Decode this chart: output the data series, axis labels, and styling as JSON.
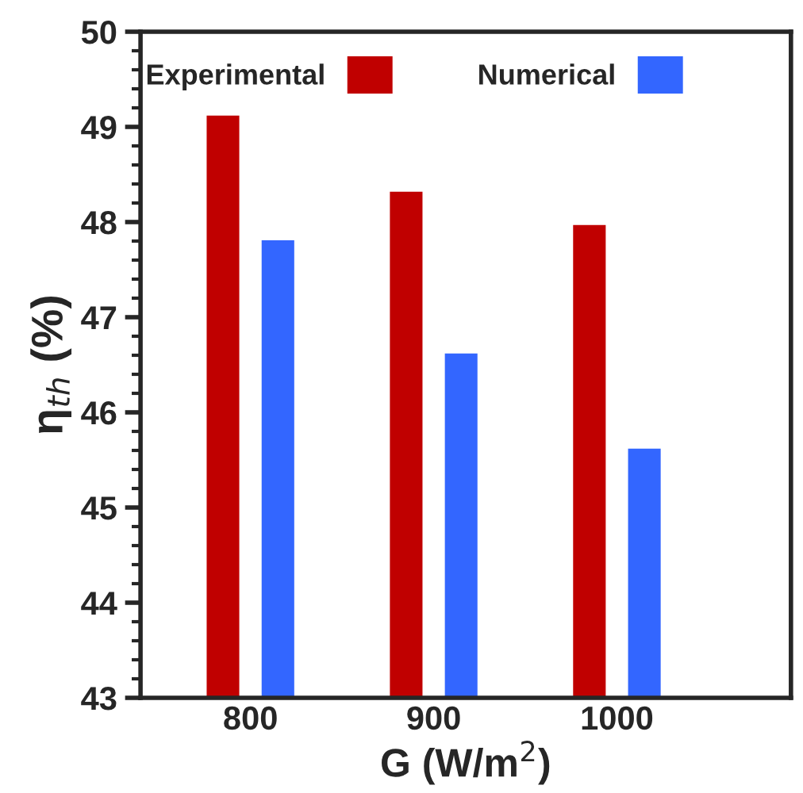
{
  "chart_data": {
    "type": "bar",
    "xlabel": "G (W/m$^{2}$)",
    "ylabel": "η$_{th}$ (%)",
    "categories": [
      "800",
      "900",
      "1000"
    ],
    "series": [
      {
        "name": "Experimental",
        "color": "#c00000",
        "values": [
          49.13,
          48.33,
          47.98
        ]
      },
      {
        "name": "Numerical",
        "color": "#3366ff",
        "values": [
          47.82,
          46.63,
          45.63
        ]
      }
    ],
    "ylim": [
      43,
      50
    ],
    "yticks": [
      43,
      44,
      45,
      46,
      47,
      48,
      49,
      50
    ],
    "grid": false,
    "legend": "top"
  }
}
